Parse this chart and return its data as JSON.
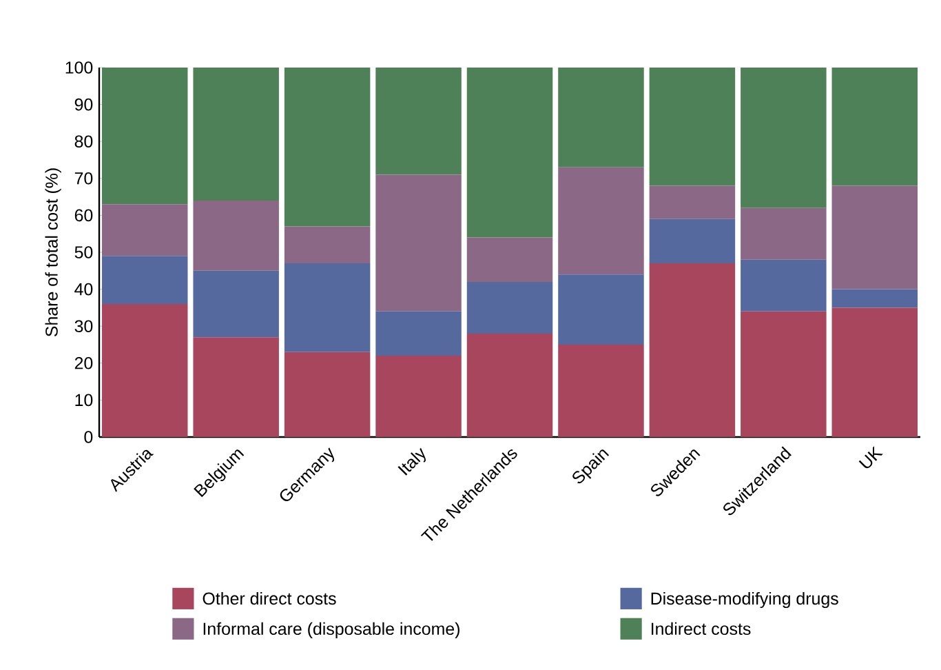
{
  "chart_data": {
    "type": "bar",
    "stacked": true,
    "ylabel": "Share of total cost (%)",
    "categories": [
      "Austria",
      "Belgium",
      "Germany",
      "Italy",
      "The Netherlands",
      "Spain",
      "Sweden",
      "Switzerland",
      "UK"
    ],
    "series": [
      {
        "name": "Other direct costs",
        "color": "#a8465e",
        "values": [
          36,
          27,
          23,
          22,
          28,
          25,
          47,
          34,
          35
        ]
      },
      {
        "name": "Disease-modifying drugs",
        "color": "#56699f",
        "values": [
          13,
          18,
          24,
          12,
          14,
          19,
          12,
          14,
          5
        ]
      },
      {
        "name": "Informal care (disposable income)",
        "color": "#8c6887",
        "values": [
          14,
          19,
          10,
          37,
          12,
          29,
          9,
          14,
          28
        ]
      },
      {
        "name": "Indirect costs",
        "color": "#4f8159",
        "values": [
          37,
          36,
          43,
          29,
          46,
          27,
          32,
          38,
          32
        ]
      }
    ],
    "ylim": [
      0,
      100
    ],
    "yticks": [
      0,
      10,
      20,
      30,
      40,
      50,
      60,
      70,
      80,
      90,
      100
    ],
    "grid": false,
    "legend": "bottom"
  }
}
